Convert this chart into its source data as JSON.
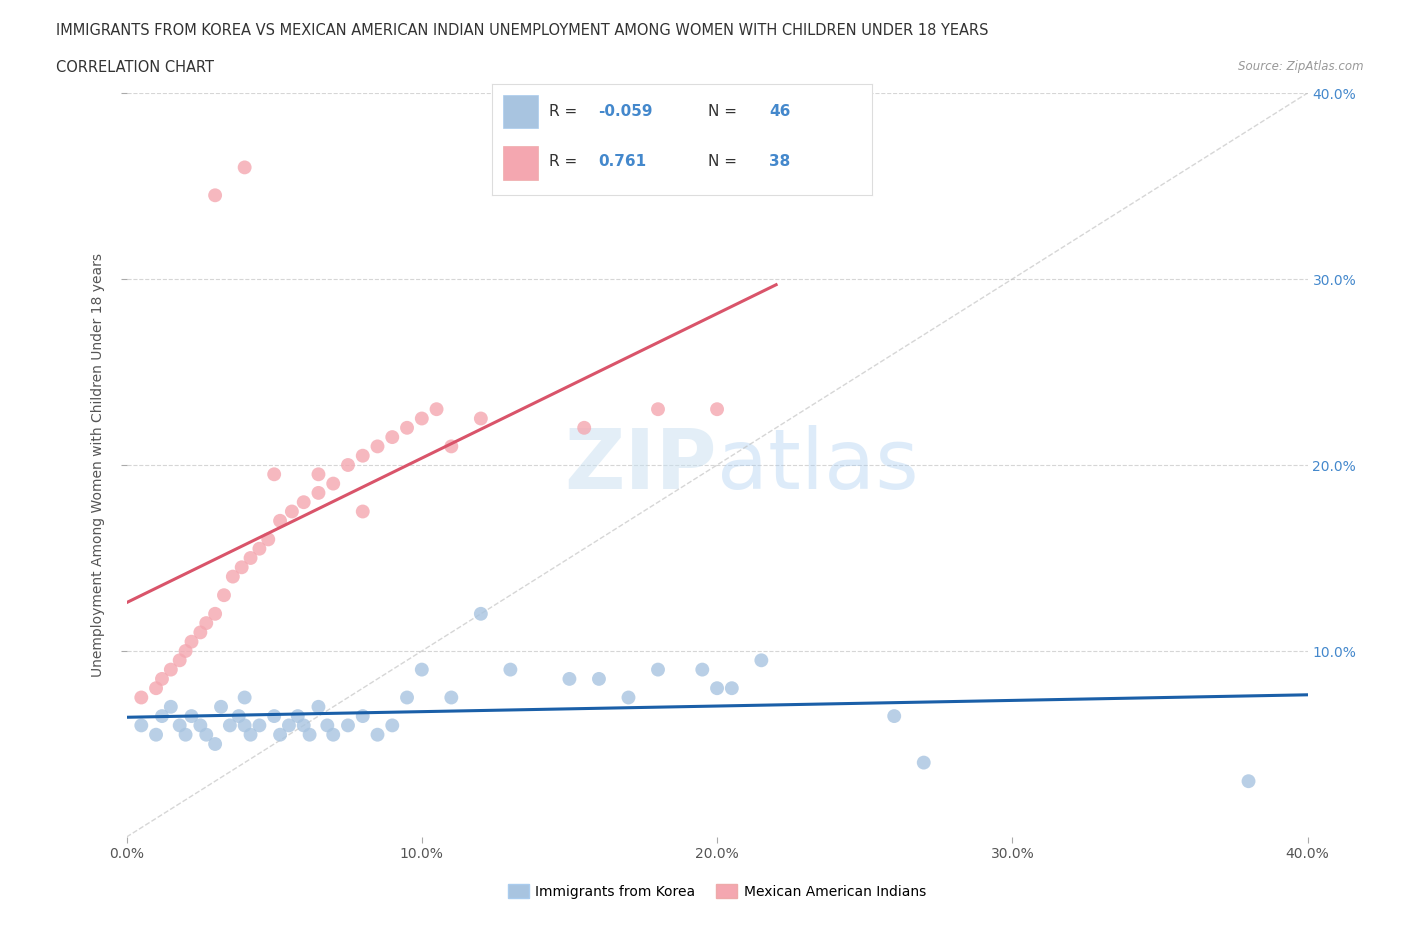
{
  "title_line1": "IMMIGRANTS FROM KOREA VS MEXICAN AMERICAN INDIAN UNEMPLOYMENT AMONG WOMEN WITH CHILDREN UNDER 18 YEARS",
  "title_line2": "CORRELATION CHART",
  "source": "Source: ZipAtlas.com",
  "ylabel": "Unemployment Among Women with Children Under 18 years",
  "xlim": [
    0.0,
    0.4
  ],
  "ylim": [
    0.0,
    0.4
  ],
  "xtick_labels": [
    "0.0%",
    "10.0%",
    "20.0%",
    "30.0%",
    "40.0%"
  ],
  "xtick_vals": [
    0.0,
    0.1,
    0.2,
    0.3,
    0.4
  ],
  "ytick_labels_right": [
    "40.0%",
    "30.0%",
    "20.0%",
    "10.0%"
  ],
  "ytick_vals_right": [
    0.4,
    0.3,
    0.2,
    0.1
  ],
  "legend_label1": "Immigrants from Korea",
  "legend_label2": "Mexican American Indians",
  "R1": "-0.059",
  "N1": "46",
  "R2": "0.761",
  "N2": "38",
  "color_korea": "#a8c4e0",
  "color_mexico": "#f4a7b0",
  "trendline_korea": "#1a5fa8",
  "trendline_mexico": "#d9546a",
  "background_color": "#ffffff",
  "grid_color": "#cccccc",
  "korea_x": [
    0.005,
    0.01,
    0.012,
    0.015,
    0.018,
    0.02,
    0.022,
    0.025,
    0.027,
    0.03,
    0.032,
    0.035,
    0.038,
    0.04,
    0.042,
    0.045,
    0.05,
    0.052,
    0.055,
    0.058,
    0.06,
    0.062,
    0.065,
    0.068,
    0.07,
    0.075,
    0.08,
    0.085,
    0.09,
    0.095,
    0.1,
    0.11,
    0.12,
    0.13,
    0.15,
    0.16,
    0.18,
    0.195,
    0.2,
    0.205,
    0.215,
    0.26,
    0.27,
    0.38,
    0.04,
    0.17
  ],
  "korea_y": [
    0.06,
    0.055,
    0.065,
    0.07,
    0.06,
    0.055,
    0.065,
    0.06,
    0.055,
    0.05,
    0.07,
    0.06,
    0.065,
    0.075,
    0.055,
    0.06,
    0.065,
    0.055,
    0.06,
    0.065,
    0.06,
    0.055,
    0.07,
    0.06,
    0.055,
    0.06,
    0.065,
    0.055,
    0.06,
    0.075,
    0.09,
    0.075,
    0.12,
    0.09,
    0.085,
    0.085,
    0.09,
    0.09,
    0.08,
    0.08,
    0.095,
    0.065,
    0.04,
    0.03,
    0.06,
    0.075
  ],
  "mexico_x": [
    0.005,
    0.01,
    0.012,
    0.015,
    0.018,
    0.02,
    0.022,
    0.025,
    0.027,
    0.03,
    0.033,
    0.036,
    0.039,
    0.042,
    0.045,
    0.048,
    0.052,
    0.056,
    0.06,
    0.065,
    0.07,
    0.075,
    0.08,
    0.085,
    0.09,
    0.095,
    0.1,
    0.105,
    0.11,
    0.12,
    0.03,
    0.04,
    0.05,
    0.065,
    0.08,
    0.155,
    0.18,
    0.2
  ],
  "mexico_y": [
    0.075,
    0.08,
    0.085,
    0.09,
    0.095,
    0.1,
    0.105,
    0.11,
    0.115,
    0.12,
    0.13,
    0.14,
    0.145,
    0.15,
    0.155,
    0.16,
    0.17,
    0.175,
    0.18,
    0.185,
    0.19,
    0.2,
    0.205,
    0.21,
    0.215,
    0.22,
    0.225,
    0.23,
    0.21,
    0.225,
    0.345,
    0.36,
    0.195,
    0.195,
    0.175,
    0.22,
    0.23,
    0.23
  ]
}
